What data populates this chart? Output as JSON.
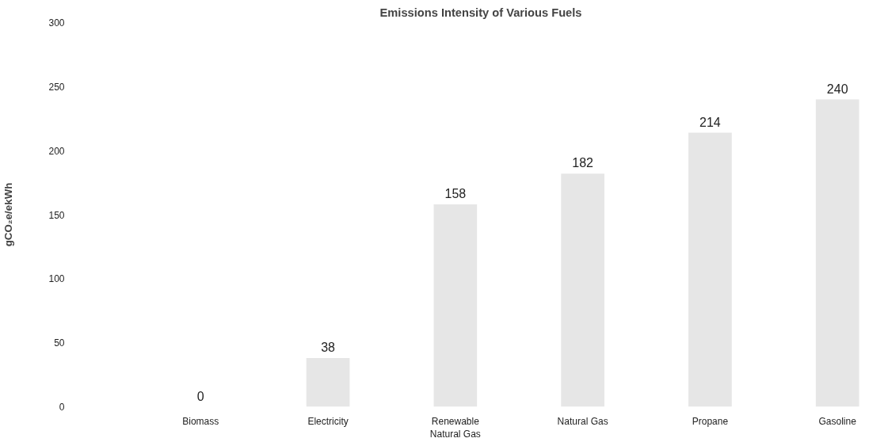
{
  "chart_data": {
    "type": "bar",
    "title": "Emissions Intensity of Various Fuels",
    "ylabel": "gCO₂e/ekWh",
    "categories": [
      "Biomass",
      "Electricity",
      "Renewable Natural Gas",
      "Natural Gas",
      "Propane",
      "Gasoline"
    ],
    "values": [
      0,
      38,
      158,
      182,
      214,
      240
    ],
    "color": "#e6e6e6",
    "ylim": [
      0,
      300
    ],
    "yticks": [
      0,
      50,
      100,
      150,
      200,
      250,
      300
    ],
    "data_labels": true
  }
}
